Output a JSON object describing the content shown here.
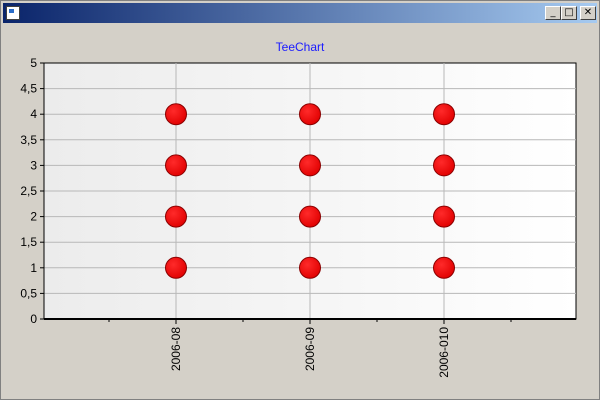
{
  "window": {
    "title": "",
    "buttons": {
      "minimize": "_",
      "maximize": "□",
      "close": "✕"
    }
  },
  "chart_data": {
    "type": "scatter",
    "title": "TeeChart",
    "xlabel": "",
    "ylabel": "",
    "categories": [
      "2006-08",
      "2006-09",
      "2006-010"
    ],
    "series": [
      {
        "points": [
          {
            "x": "2006-08",
            "y": 1
          },
          {
            "x": "2006-08",
            "y": 2
          },
          {
            "x": "2006-08",
            "y": 3
          },
          {
            "x": "2006-08",
            "y": 4
          },
          {
            "x": "2006-09",
            "y": 1
          },
          {
            "x": "2006-09",
            "y": 2
          },
          {
            "x": "2006-09",
            "y": 3
          },
          {
            "x": "2006-09",
            "y": 4
          },
          {
            "x": "2006-010",
            "y": 1
          },
          {
            "x": "2006-010",
            "y": 2
          },
          {
            "x": "2006-010",
            "y": 3
          },
          {
            "x": "2006-010",
            "y": 4
          }
        ]
      }
    ],
    "ylim": [
      0,
      5
    ],
    "yticks": [
      "0",
      "0,5",
      "1",
      "1,5",
      "2",
      "2,5",
      "3",
      "3,5",
      "4",
      "4,5",
      "5"
    ],
    "grid": true,
    "marker_color": "#ff0000",
    "title_color": "#1a1aff"
  }
}
